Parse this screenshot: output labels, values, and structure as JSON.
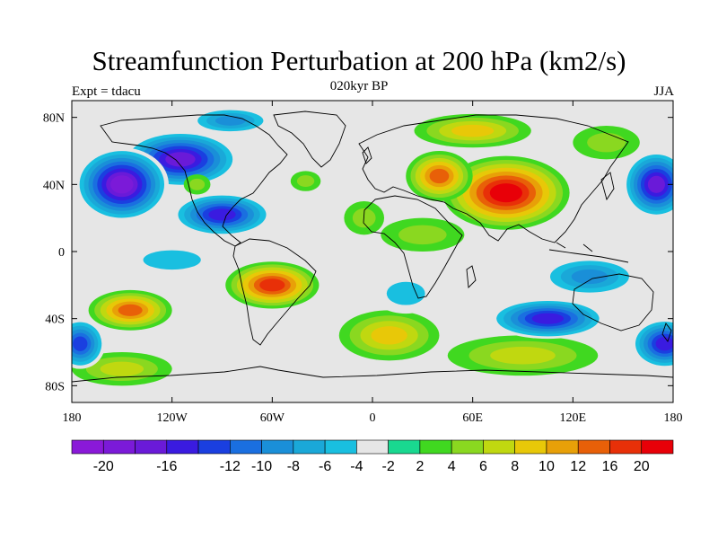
{
  "title": "Streamfunction Perturbation at 200 hPa (km2/s)",
  "subtitle": "020kyr BP",
  "left_string": "Expt = tdacu",
  "right_string": "JJA",
  "chart_data": {
    "type": "heatmap",
    "projection": "cylindrical-equidistant",
    "variable": "Streamfunction Perturbation",
    "level": "200 hPa",
    "units": "km2/s",
    "season": "JJA",
    "xlim": [
      -180,
      180
    ],
    "ylim": [
      -90,
      90
    ],
    "x_ticks": [
      {
        "lon": -180,
        "label": "180"
      },
      {
        "lon": -120,
        "label": "120W"
      },
      {
        "lon": -60,
        "label": "60W"
      },
      {
        "lon": 0,
        "label": "0"
      },
      {
        "lon": 60,
        "label": "60E"
      },
      {
        "lon": 120,
        "label": "120E"
      },
      {
        "lon": 180,
        "label": "180"
      }
    ],
    "y_ticks": [
      {
        "lat": 80,
        "label": "80N"
      },
      {
        "lat": 40,
        "label": "40N"
      },
      {
        "lat": 0,
        "label": "0"
      },
      {
        "lat": -40,
        "label": "40S"
      },
      {
        "lat": -80,
        "label": "80S"
      }
    ],
    "colorbar": {
      "levels": [
        -20,
        -18,
        -16,
        -14,
        -12,
        -10,
        -8,
        -6,
        -4,
        -2,
        2,
        4,
        6,
        8,
        10,
        12,
        16,
        20
      ],
      "labels": [
        "-20",
        "-16",
        "-12",
        "-10",
        "-8",
        "-6",
        "-4",
        "-2",
        "2",
        "4",
        "6",
        "8",
        "10",
        "12",
        "16",
        "20"
      ],
      "label_levels": [
        -20,
        -16,
        -12,
        -10,
        -8,
        -6,
        -4,
        -2,
        2,
        4,
        6,
        8,
        10,
        12,
        16,
        20
      ],
      "colors": [
        "#8a19d8",
        "#7b1ad8",
        "#6a1ad8",
        "#3a1be0",
        "#1a3fe0",
        "#1a6fe0",
        "#1a8fd8",
        "#1aa8d8",
        "#19bfe0",
        "#e6e6e6",
        "#19d890",
        "#40d820",
        "#8ad820",
        "#c0d810",
        "#e8c808",
        "#e8a008",
        "#e86008",
        "#e83008",
        "#e80008"
      ]
    },
    "field_centers": [
      {
        "lon": -115,
        "lat": 55,
        "value": -17,
        "rx": 35,
        "ry": 17
      },
      {
        "lon": -150,
        "lat": 40,
        "value": -18,
        "rx": 28,
        "ry": 22
      },
      {
        "lon": -90,
        "lat": 22,
        "value": -15,
        "rx": 30,
        "ry": 13
      },
      {
        "lon": -85,
        "lat": 78,
        "value": -9,
        "rx": 25,
        "ry": 8
      },
      {
        "lon": -105,
        "lat": 40,
        "value": 5,
        "rx": 8,
        "ry": 6
      },
      {
        "lon": -40,
        "lat": 42,
        "value": 5,
        "rx": 9,
        "ry": 6
      },
      {
        "lon": 170,
        "lat": 40,
        "value": -17,
        "rx": 20,
        "ry": 20
      },
      {
        "lon": 80,
        "lat": 35,
        "value": 21,
        "rx": 38,
        "ry": 22
      },
      {
        "lon": 40,
        "lat": 45,
        "value": 13,
        "rx": 20,
        "ry": 15
      },
      {
        "lon": 60,
        "lat": 72,
        "value": 9,
        "rx": 35,
        "ry": 10
      },
      {
        "lon": 30,
        "lat": 10,
        "value": 5,
        "rx": 25,
        "ry": 10
      },
      {
        "lon": -5,
        "lat": 20,
        "value": 5,
        "rx": 12,
        "ry": 10
      },
      {
        "lon": -60,
        "lat": -20,
        "value": 17,
        "rx": 28,
        "ry": 14
      },
      {
        "lon": -145,
        "lat": -35,
        "value": 12,
        "rx": 25,
        "ry": 12
      },
      {
        "lon": 10,
        "lat": -50,
        "value": 8,
        "rx": 30,
        "ry": 15
      },
      {
        "lon": 90,
        "lat": -62,
        "value": 7,
        "rx": 45,
        "ry": 12
      },
      {
        "lon": -150,
        "lat": -70,
        "value": 6,
        "rx": 30,
        "ry": 10
      },
      {
        "lon": 105,
        "lat": -40,
        "value": -14,
        "rx": 35,
        "ry": 12
      },
      {
        "lon": 175,
        "lat": -55,
        "value": -15,
        "rx": 20,
        "ry": 15
      },
      {
        "lon": -175,
        "lat": -55,
        "value": -13,
        "rx": 15,
        "ry": 15
      },
      {
        "lon": 130,
        "lat": -15,
        "value": -8,
        "rx": 30,
        "ry": 12
      },
      {
        "lon": 20,
        "lat": -25,
        "value": -5,
        "rx": 20,
        "ry": 12
      },
      {
        "lon": -120,
        "lat": -5,
        "value": -4,
        "rx": 30,
        "ry": 10
      },
      {
        "lon": 140,
        "lat": 65,
        "value": 5,
        "rx": 20,
        "ry": 10
      }
    ]
  }
}
